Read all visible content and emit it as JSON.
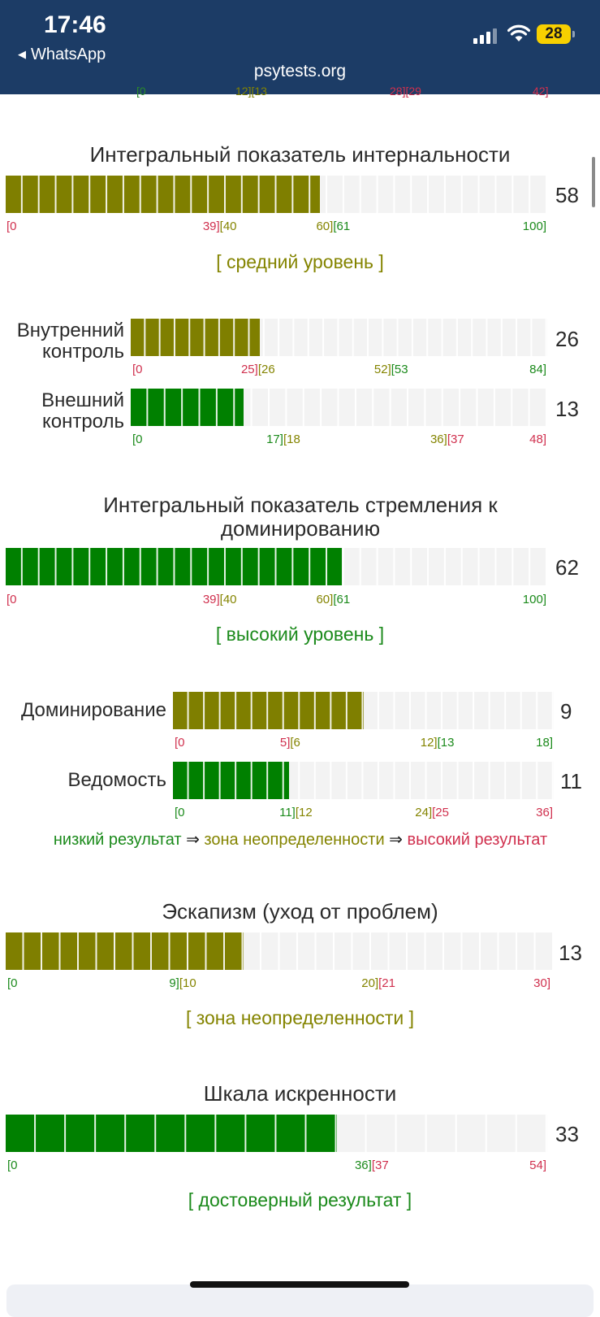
{
  "statusbar": {
    "time": "17:46",
    "back_app": "WhatsApp",
    "url": "psytests.org",
    "battery": "28"
  },
  "clipped_row": [
    "[0",
    "12][13",
    "28][29",
    "42]"
  ],
  "sections": [
    {
      "id": "internality",
      "title": "Интегральный показатель интернальности",
      "score": "58",
      "value": 58,
      "max": 100,
      "fill_color": "#7f7f00",
      "segments": 32,
      "ticks": [
        {
          "text": "[0",
          "at": 0,
          "color": "#d0304e"
        },
        {
          "text": "39][40",
          "at": 39.5,
          "color": "#d0304e",
          "split": true,
          "colorB": "#848400"
        },
        {
          "text": "60][61",
          "at": 60.5,
          "color": "#848400",
          "split": true,
          "colorB": "#1b8a1b"
        },
        {
          "text": "100]",
          "at": 100,
          "color": "#1b8a1b"
        }
      ],
      "verdict": "[ средний уровень ]",
      "verdict_color": "#848400"
    },
    {
      "id": "dominance",
      "title": "Интегральный показатель стремления к доминированию",
      "score": "62",
      "value": 62,
      "max": 100,
      "fill_color": "#008000",
      "segments": 32,
      "ticks": [
        {
          "text": "[0",
          "at": 0,
          "color": "#d0304e"
        },
        {
          "text": "39][40",
          "at": 39.5,
          "color": "#d0304e",
          "split": true,
          "colorB": "#848400"
        },
        {
          "text": "60][61",
          "at": 60.5,
          "color": "#848400",
          "split": true,
          "colorB": "#1b8a1b"
        },
        {
          "text": "100]",
          "at": 100,
          "color": "#1b8a1b"
        }
      ],
      "verdict": "[ высокий уровень ]",
      "verdict_color": "#1b8a1b"
    },
    {
      "id": "escapism",
      "title": "Эскапизм (уход от проблем)",
      "score": "13",
      "value": 13,
      "max": 30,
      "fill_color": "#7f7f00",
      "segments": 30,
      "ticks": [
        {
          "text": "[0",
          "at": 0,
          "color": "#1b8a1b"
        },
        {
          "text": "9][10",
          "at": 9.5,
          "color": "#1b8a1b",
          "split": true,
          "colorB": "#848400"
        },
        {
          "text": "20][21",
          "at": 20.5,
          "color": "#848400",
          "split": true,
          "colorB": "#d0304e"
        },
        {
          "text": "30]",
          "at": 30,
          "color": "#d0304e"
        }
      ],
      "verdict": "[ зона неопределенности ]",
      "verdict_color": "#848400"
    },
    {
      "id": "sincerity",
      "title": "Шкала искренности",
      "score": "33",
      "value": 33,
      "max": 54,
      "fill_color": "#008000",
      "segments": 18,
      "ticks": [
        {
          "text": "[0",
          "at": 0,
          "color": "#1b8a1b"
        },
        {
          "text": "36][37",
          "at": 36.5,
          "color": "#1b8a1b",
          "split": true,
          "colorB": "#d0304e"
        },
        {
          "text": "54]",
          "at": 54,
          "color": "#d0304e"
        }
      ],
      "verdict": "[ достоверный результат ]",
      "verdict_color": "#1b8a1b"
    }
  ],
  "subscales": [
    {
      "id": "internal-control",
      "label": "Внутренний контроль",
      "score": "26",
      "value": 26,
      "max": 84,
      "fill_color": "#7f7f00",
      "segments": 28,
      "ticks": [
        {
          "text": "[0",
          "at": 0,
          "color": "#d0304e"
        },
        {
          "text": "25][26",
          "at": 25.5,
          "color": "#d0304e",
          "split": true,
          "colorB": "#848400"
        },
        {
          "text": "52][53",
          "at": 52.5,
          "color": "#848400",
          "split": true,
          "colorB": "#1b8a1b"
        },
        {
          "text": "84]",
          "at": 84,
          "color": "#1b8a1b"
        }
      ]
    },
    {
      "id": "external-control",
      "label": "Внешний контроль",
      "score": "13",
      "value": 13,
      "max": 48,
      "fill_color": "#008000",
      "segments": 24,
      "ticks": [
        {
          "text": "[0",
          "at": 0,
          "color": "#1b8a1b"
        },
        {
          "text": "17][18",
          "at": 17.5,
          "color": "#1b8a1b",
          "split": true,
          "colorB": "#848400"
        },
        {
          "text": "36][37",
          "at": 36.5,
          "color": "#848400",
          "split": true,
          "colorB": "#d0304e"
        },
        {
          "text": "48]",
          "at": 48,
          "color": "#d0304e"
        }
      ]
    },
    {
      "id": "domination",
      "label": "Доминирование",
      "score": "9",
      "value": 9,
      "max": 18,
      "fill_color": "#7f7f00",
      "segments": 24,
      "ticks": [
        {
          "text": "[0",
          "at": 0,
          "color": "#d0304e"
        },
        {
          "text": "5][6",
          "at": 5.5,
          "color": "#d0304e",
          "split": true,
          "colorB": "#848400"
        },
        {
          "text": "12][13",
          "at": 12.5,
          "color": "#848400",
          "split": true,
          "colorB": "#1b8a1b"
        },
        {
          "text": "18]",
          "at": 18,
          "color": "#1b8a1b"
        }
      ]
    },
    {
      "id": "submission",
      "label": "Ведомость",
      "score": "11",
      "value": 11,
      "max": 36,
      "fill_color": "#008000",
      "segments": 24,
      "ticks": [
        {
          "text": "[0",
          "at": 0,
          "color": "#1b8a1b"
        },
        {
          "text": "11][12",
          "at": 11.5,
          "color": "#1b8a1b",
          "split": true,
          "colorB": "#848400"
        },
        {
          "text": "24][25",
          "at": 24.5,
          "color": "#848400",
          "split": true,
          "colorB": "#d0304e"
        },
        {
          "text": "36]",
          "at": 36,
          "color": "#d0304e"
        }
      ]
    }
  ],
  "legend": {
    "low": "низкий результат",
    "arrow": "⇒",
    "mid": "зона неопределенности",
    "high": "высокий результат"
  }
}
